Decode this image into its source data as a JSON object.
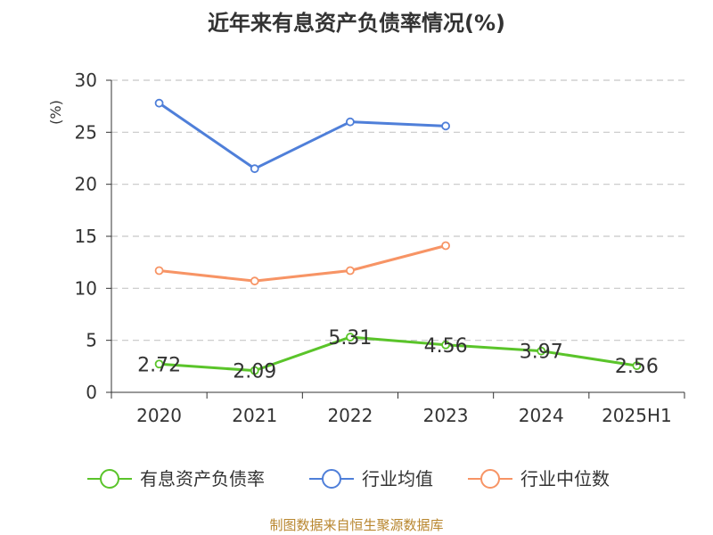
{
  "chart_data": {
    "type": "line",
    "title": "近年来有息资产负债率情况(%)",
    "ylabel": "(%)",
    "xlabel": "",
    "categories": [
      "2020",
      "2021",
      "2022",
      "2023",
      "2024",
      "2025H1"
    ],
    "ylim": [
      0,
      30
    ],
    "yticks": [
      0,
      5,
      10,
      15,
      20,
      25,
      30
    ],
    "grid": true,
    "legend_position": "bottom",
    "series": [
      {
        "name": "有息资产负债率",
        "color": "#5ac42a",
        "values": [
          2.72,
          2.09,
          5.31,
          4.56,
          3.97,
          2.56
        ],
        "show_labels": true
      },
      {
        "name": "行业均值",
        "color": "#4f7fd9",
        "values": [
          27.8,
          21.5,
          26.0,
          25.6,
          null,
          null
        ],
        "show_labels": false
      },
      {
        "name": "行业中位数",
        "color": "#f79465",
        "values": [
          11.7,
          10.7,
          11.7,
          14.1,
          null,
          null
        ],
        "show_labels": false
      }
    ],
    "data_labels": [
      "2.72",
      "2.09",
      "5.31",
      "4.56",
      "3.97",
      "2.56"
    ]
  },
  "colors": {
    "ylabel": "#cc0000",
    "grid": "#c8c8c8",
    "axis": "#333333"
  },
  "footer": {
    "source": "制图数据来自恒生聚源数据库"
  }
}
